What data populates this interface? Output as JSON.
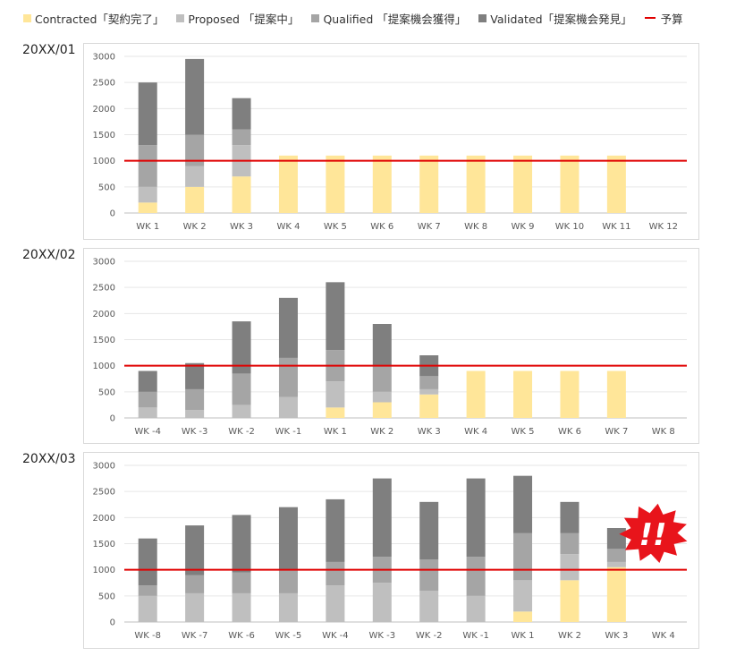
{
  "legend": {
    "items": [
      {
        "label": "Contracted「契約完了」",
        "color": "#FFE699"
      },
      {
        "label": "Proposed 「提案中」",
        "color": "#BFBFBF"
      },
      {
        "label": "Qualified 「提案機会獲得」",
        "color": "#A5A5A5"
      },
      {
        "label": "Validated「提案機会発見」",
        "color": "#7F7F7F"
      }
    ],
    "budget_label": "予算",
    "budget_color": "#E00000"
  },
  "alert": {
    "text": "!!",
    "color": "#E8141B"
  },
  "chart_data": [
    {
      "type": "bar",
      "stacked": true,
      "title": "20XX/01",
      "categories": [
        "WK 1",
        "WK 2",
        "WK 3",
        "WK 4",
        "WK 5",
        "WK 6",
        "WK 7",
        "WK 8",
        "WK 9",
        "WK 10",
        "WK 11",
        "WK 12"
      ],
      "ylim": [
        0,
        3000
      ],
      "yticks": [
        0,
        500,
        1000,
        1500,
        2000,
        2500,
        3000
      ],
      "grid": true,
      "series": [
        {
          "name": "Contracted「契約完了」",
          "color": "#FFE699",
          "values": [
            200,
            500,
            700,
            1100,
            1100,
            1100,
            1100,
            1100,
            1100,
            1100,
            1100,
            0
          ]
        },
        {
          "name": "Proposed 「提案中」",
          "color": "#BFBFBF",
          "values": [
            300,
            400,
            600,
            0,
            0,
            0,
            0,
            0,
            0,
            0,
            0,
            0
          ]
        },
        {
          "name": "Qualified 「提案機会獲得」",
          "color": "#A5A5A5",
          "values": [
            800,
            600,
            300,
            0,
            0,
            0,
            0,
            0,
            0,
            0,
            0,
            0
          ]
        },
        {
          "name": "Validated「提案機会発見」",
          "color": "#7F7F7F",
          "values": [
            1200,
            1450,
            600,
            0,
            0,
            0,
            0,
            0,
            0,
            0,
            0,
            0
          ]
        }
      ],
      "budget": 1000
    },
    {
      "type": "bar",
      "stacked": true,
      "title": "20XX/02",
      "categories": [
        "WK -4",
        "WK -3",
        "WK -2",
        "WK -1",
        "WK 1",
        "WK 2",
        "WK 3",
        "WK 4",
        "WK 5",
        "WK 6",
        "WK 7",
        "WK 8"
      ],
      "ylim": [
        0,
        3000
      ],
      "yticks": [
        0,
        500,
        1000,
        1500,
        2000,
        2500,
        3000
      ],
      "grid": true,
      "series": [
        {
          "name": "Contracted「契約完了」",
          "color": "#FFE699",
          "values": [
            0,
            0,
            0,
            0,
            200,
            300,
            450,
            900,
            900,
            900,
            900,
            0
          ]
        },
        {
          "name": "Proposed 「提案中」",
          "color": "#BFBFBF",
          "values": [
            200,
            150,
            250,
            400,
            500,
            200,
            100,
            0,
            0,
            0,
            0,
            0
          ]
        },
        {
          "name": "Qualified 「提案機会獲得」",
          "color": "#A5A5A5",
          "values": [
            300,
            400,
            600,
            750,
            600,
            500,
            250,
            0,
            0,
            0,
            0,
            0
          ]
        },
        {
          "name": "Validated「提案機会発見」",
          "color": "#7F7F7F",
          "values": [
            400,
            500,
            1000,
            1150,
            1300,
            800,
            400,
            0,
            0,
            0,
            0,
            0
          ]
        }
      ],
      "budget": 1000
    },
    {
      "type": "bar",
      "stacked": true,
      "title": "20XX/03",
      "categories": [
        "WK -8",
        "WK -7",
        "WK -6",
        "WK -5",
        "WK -4",
        "WK -3",
        "WK -2",
        "WK -1",
        "WK 1",
        "WK 2",
        "WK 3",
        "WK 4"
      ],
      "ylim": [
        0,
        3000
      ],
      "yticks": [
        0,
        500,
        1000,
        1500,
        2000,
        2500,
        3000
      ],
      "grid": true,
      "series": [
        {
          "name": "Contracted「契約完了」",
          "color": "#FFE699",
          "values": [
            0,
            0,
            0,
            0,
            0,
            0,
            0,
            0,
            200,
            800,
            1050,
            0
          ]
        },
        {
          "name": "Proposed 「提案中」",
          "color": "#BFBFBF",
          "values": [
            500,
            550,
            550,
            550,
            700,
            750,
            600,
            500,
            600,
            500,
            100,
            0
          ]
        },
        {
          "name": "Qualified 「提案機会獲得」",
          "color": "#A5A5A5",
          "values": [
            200,
            350,
            400,
            450,
            450,
            500,
            600,
            750,
            900,
            400,
            250,
            0
          ]
        },
        {
          "name": "Validated「提案機会発見」",
          "color": "#7F7F7F",
          "values": [
            900,
            950,
            1100,
            1200,
            1200,
            1500,
            1100,
            1500,
            1100,
            600,
            400,
            0
          ]
        }
      ],
      "budget": 1000
    }
  ]
}
